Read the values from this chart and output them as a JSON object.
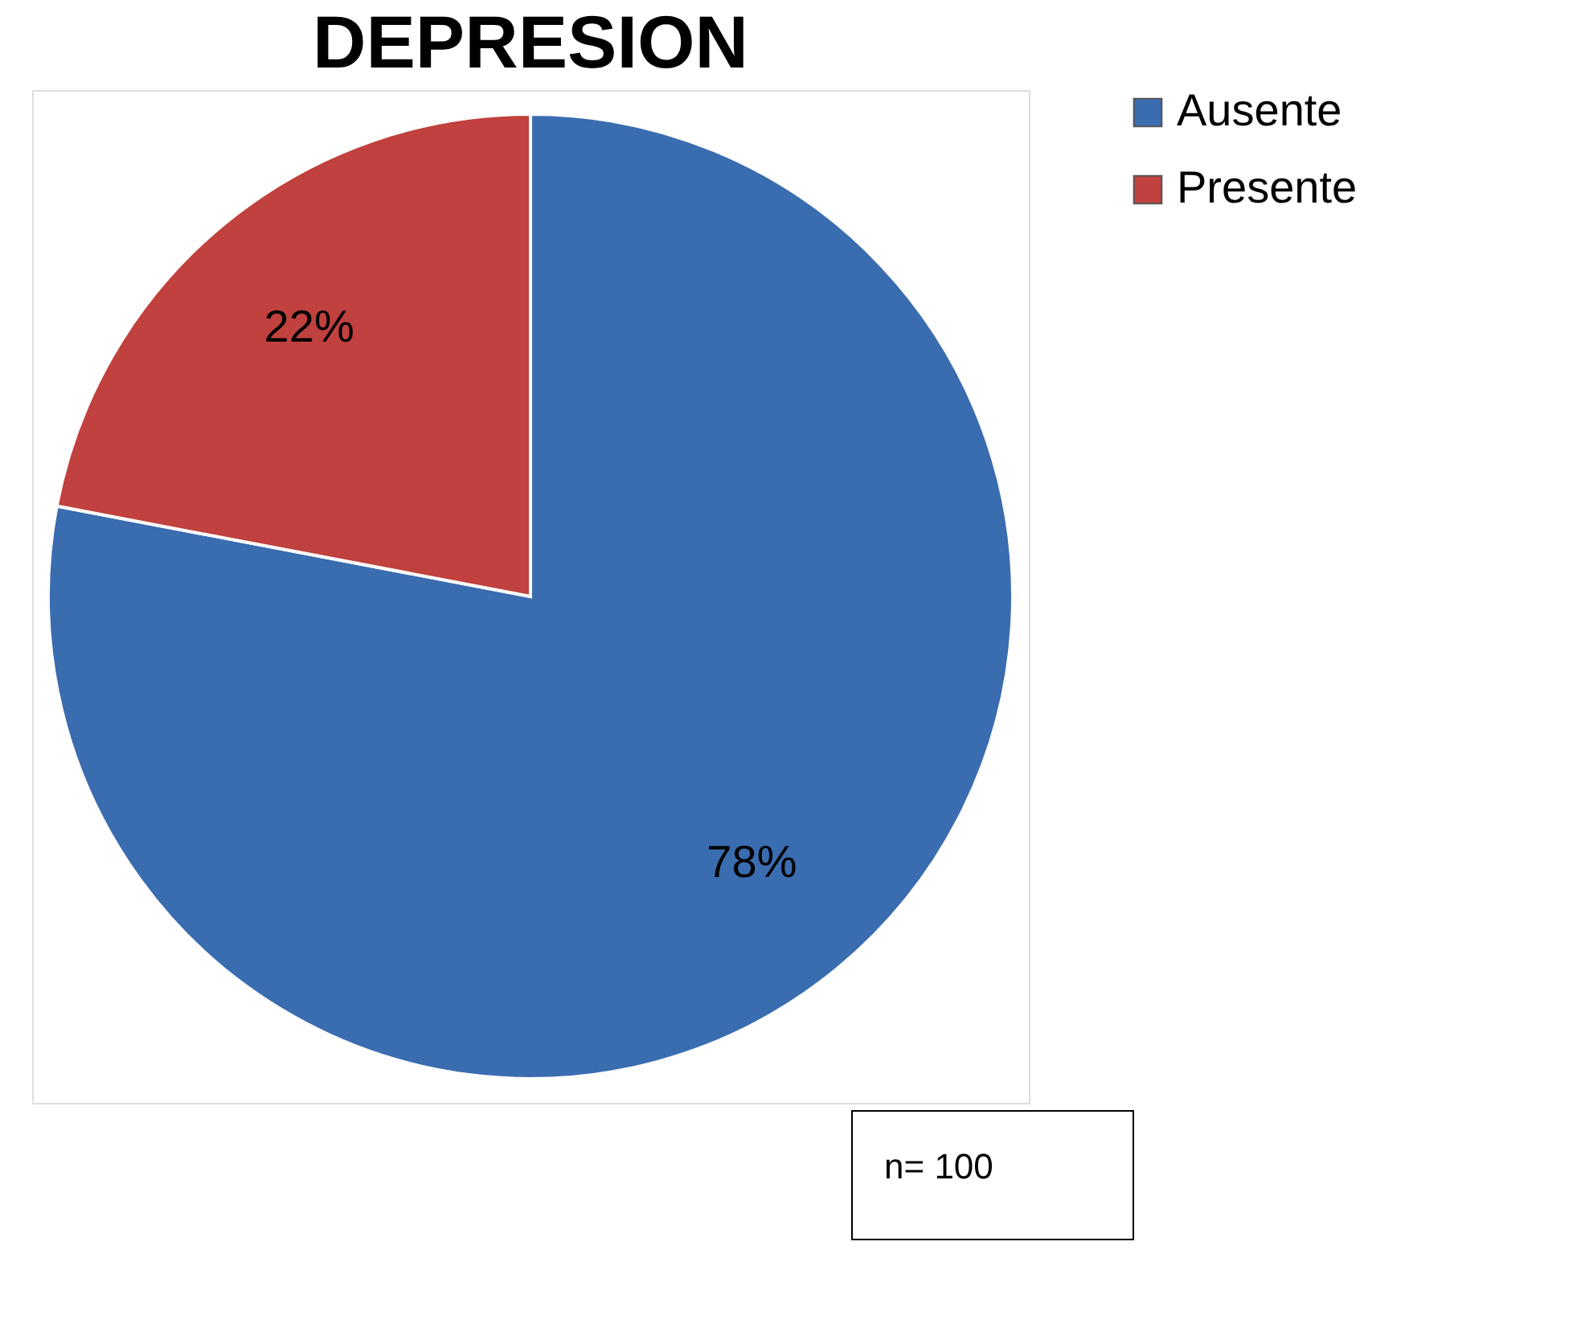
{
  "chart_data": {
    "type": "pie",
    "title": "DEPRESION",
    "categories": [
      "Ausente",
      "Presente"
    ],
    "values": [
      78,
      22
    ],
    "colors": [
      "#3a6cb0",
      "#c0413d"
    ],
    "value_labels": [
      "78%",
      "22%"
    ],
    "legend": "right",
    "annotations": [
      "n= 100"
    ]
  }
}
